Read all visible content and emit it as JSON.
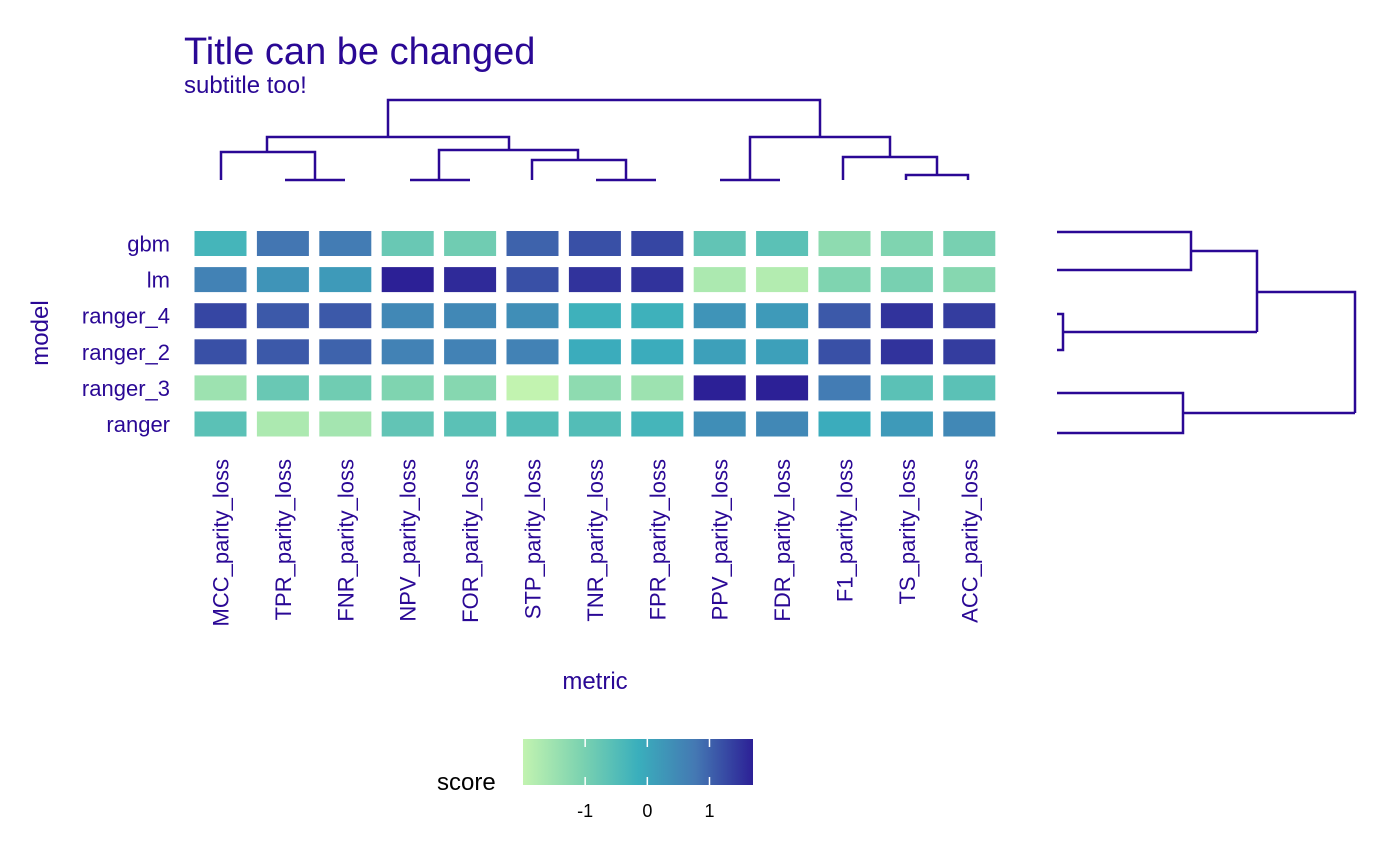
{
  "chart_data": {
    "type": "heatmap",
    "title": "Title can be changed",
    "subtitle": "subtitle too!",
    "xlabel": "metric",
    "ylabel": "model",
    "rows": [
      "gbm",
      "lm",
      "ranger_4",
      "ranger_2",
      "ranger_3",
      "ranger"
    ],
    "columns": [
      "MCC_parity_loss",
      "TPR_parity_loss",
      "FNR_parity_loss",
      "NPV_parity_loss",
      "FOR_parity_loss",
      "STP_parity_loss",
      "TNR_parity_loss",
      "FPR_parity_loss",
      "PPV_parity_loss",
      "FDR_parity_loss",
      "F1_parity_loss",
      "TS_parity_loss",
      "ACC_parity_loss"
    ],
    "values": [
      [
        -0.3,
        0.8,
        0.7,
        -0.8,
        -0.9,
        1.0,
        1.2,
        1.3,
        -0.7,
        -0.6,
        -1.3,
        -1.1,
        -1.0
      ],
      [
        0.6,
        0.3,
        0.2,
        1.7,
        1.6,
        1.2,
        1.5,
        1.5,
        -1.7,
        -1.8,
        -1.1,
        -1.0,
        -1.2
      ],
      [
        1.3,
        1.1,
        1.1,
        0.5,
        0.5,
        0.4,
        -0.2,
        -0.2,
        0.3,
        0.2,
        1.1,
        1.5,
        1.4
      ],
      [
        1.2,
        1.1,
        1.0,
        0.6,
        0.6,
        0.6,
        -0.1,
        -0.1,
        0.1,
        0.1,
        1.2,
        1.5,
        1.4
      ],
      [
        -1.5,
        -0.8,
        -0.9,
        -1.1,
        -1.2,
        -2.0,
        -1.3,
        -1.5,
        1.7,
        1.7,
        0.7,
        -0.6,
        -0.6
      ],
      [
        -0.6,
        -1.7,
        -1.6,
        -0.7,
        -0.6,
        -0.5,
        -0.5,
        -0.3,
        0.4,
        0.5,
        -0.1,
        0.2,
        0.5
      ]
    ],
    "colorbar": {
      "label": "score",
      "ticks": [
        -1,
        0,
        1
      ],
      "range": [
        -2,
        1.7
      ],
      "colors": [
        "#c2f3b0",
        "#7dd3b0",
        "#3aafbc",
        "#4478b3",
        "#2c2096"
      ]
    },
    "accent_color": "#2a0895",
    "column_dendrogram": [
      [
        0,
        1
      ],
      [
        2,
        3
      ],
      [
        4,
        5
      ],
      [
        6,
        7
      ],
      [
        8,
        9
      ],
      [
        10,
        11
      ],
      [
        12,
        13
      ],
      [
        14,
        15
      ],
      [
        16,
        17
      ],
      [
        18,
        19
      ],
      [
        20,
        21
      ],
      [
        22,
        23
      ]
    ]
  }
}
